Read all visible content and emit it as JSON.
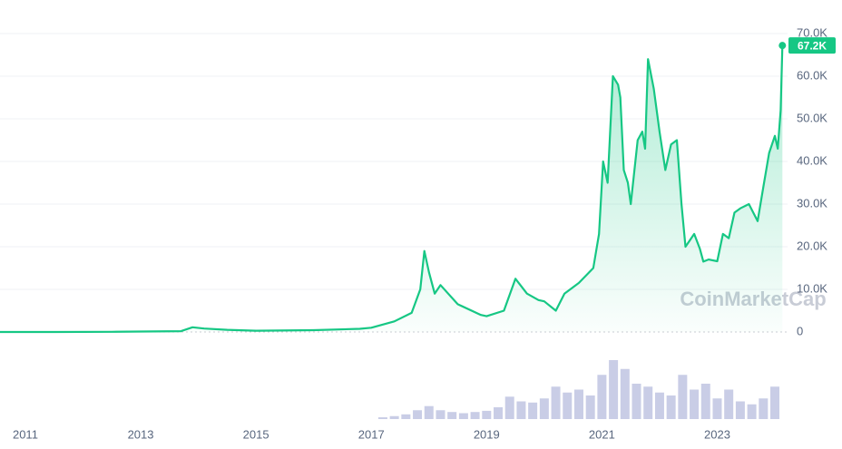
{
  "chart_data": {
    "type": "area",
    "watermark": "CoinMarketCap",
    "current_value": 67200,
    "current_value_label": "67.2K",
    "color": "#16c784",
    "x": [
      2010.56,
      2011.5,
      2012.5,
      2013.0,
      2013.7,
      2013.9,
      2014.1,
      2014.5,
      2015.0,
      2016.0,
      2016.8,
      2017.0,
      2017.4,
      2017.7,
      2017.85,
      2017.92,
      2018.0,
      2018.1,
      2018.2,
      2018.5,
      2018.9,
      2019.0,
      2019.3,
      2019.5,
      2019.7,
      2019.9,
      2020.0,
      2020.2,
      2020.35,
      2020.6,
      2020.85,
      2020.95,
      2021.02,
      2021.1,
      2021.19,
      2021.28,
      2021.32,
      2021.38,
      2021.45,
      2021.5,
      2021.62,
      2021.7,
      2021.75,
      2021.8,
      2021.9,
      2022.0,
      2022.1,
      2022.2,
      2022.3,
      2022.38,
      2022.45,
      2022.6,
      2022.7,
      2022.76,
      2022.85,
      2023.0,
      2023.1,
      2023.2,
      2023.3,
      2023.4,
      2023.55,
      2023.7,
      2023.8,
      2023.9,
      2024.0,
      2024.05,
      2024.1,
      2024.13
    ],
    "values": [
      0,
      10,
      50,
      100,
      200,
      1100,
      800,
      500,
      300,
      430,
      750,
      1000,
      2500,
      4500,
      10000,
      19000,
      14000,
      9000,
      11000,
      6500,
      4000,
      3700,
      5000,
      12500,
      9000,
      7500,
      7200,
      5000,
      9000,
      11500,
      15000,
      23000,
      40000,
      35000,
      60000,
      58000,
      55000,
      38000,
      35000,
      30000,
      45000,
      47000,
      43000,
      64000,
      57000,
      47000,
      38000,
      44000,
      45000,
      30000,
      20000,
      23000,
      19500,
      16500,
      17000,
      16600,
      23000,
      22000,
      28000,
      29000,
      30000,
      26000,
      34000,
      42000,
      46000,
      43000,
      52000,
      67200
    ],
    "xlim": [
      2010.56,
      2024.22
    ],
    "xticks": [
      2011,
      2013,
      2015,
      2017,
      2019,
      2021,
      2023
    ],
    "ylim": [
      0,
      70000
    ],
    "yticks": [
      0,
      {
        "value": 10000,
        "label": "10.0K"
      },
      {
        "value": 20000,
        "label": "20.0K"
      },
      {
        "value": 30000,
        "label": "30.0K"
      },
      {
        "value": 40000,
        "label": "40.0K"
      },
      {
        "value": 50000,
        "label": "50.0K"
      },
      {
        "value": 60000,
        "label": "60.0K"
      },
      {
        "value": 70000,
        "label": "70.0K"
      }
    ],
    "grid": true,
    "volume": {
      "color": "#c9cde6",
      "x": [
        2017.2,
        2017.4,
        2017.6,
        2017.8,
        2018.0,
        2018.2,
        2018.4,
        2018.6,
        2018.8,
        2019.0,
        2019.2,
        2019.4,
        2019.6,
        2019.8,
        2020.0,
        2020.2,
        2020.4,
        2020.6,
        2020.8,
        2021.0,
        2021.2,
        2021.4,
        2021.6,
        2021.8,
        2022.0,
        2022.2,
        2022.4,
        2022.6,
        2022.8,
        2023.0,
        2023.2,
        2023.4,
        2023.6,
        2023.8,
        2024.0
      ],
      "values": [
        3,
        5,
        8,
        15,
        22,
        15,
        12,
        10,
        12,
        14,
        20,
        38,
        30,
        28,
        35,
        55,
        45,
        50,
        40,
        75,
        100,
        85,
        60,
        55,
        45,
        40,
        75,
        50,
        60,
        35,
        50,
        30,
        25,
        35,
        55
      ]
    }
  }
}
